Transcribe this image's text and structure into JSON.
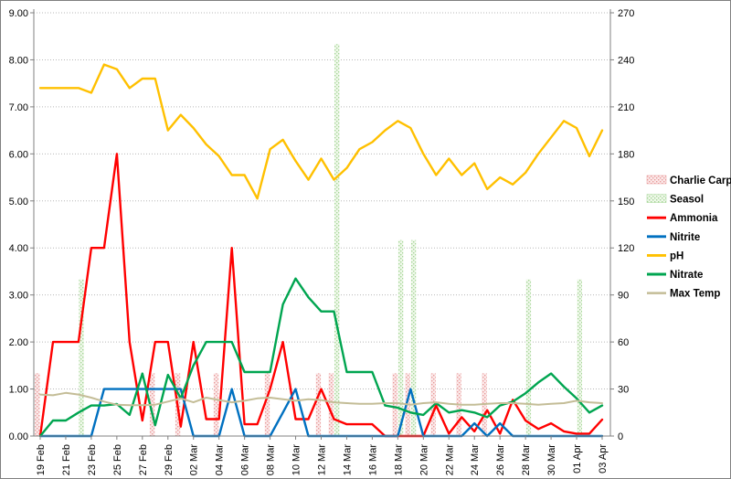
{
  "window": {
    "title": ""
  },
  "chart_data": {
    "type": "line",
    "description": "Combination line/bar chart of pond water quality: chemistry lines on left axis, temperature and dosing bars on right axis",
    "categories": [
      "19 Feb",
      "20 Feb",
      "21 Feb",
      "22 Feb",
      "23 Feb",
      "24 Feb",
      "25 Feb",
      "26 Feb",
      "27 Feb",
      "28 Feb",
      "29 Feb",
      "01 Mar",
      "02 Mar",
      "03 Mar",
      "04 Mar",
      "05 Mar",
      "06 Mar",
      "07 Mar",
      "08 Mar",
      "09 Mar",
      "10 Mar",
      "11 Mar",
      "12 Mar",
      "13 Mar",
      "14 Mar",
      "15 Mar",
      "16 Mar",
      "17 Mar",
      "18 Mar",
      "19 Mar",
      "20 Mar",
      "21 Mar",
      "22 Mar",
      "23 Mar",
      "24 Mar",
      "25 Mar",
      "26 Mar",
      "27 Mar",
      "28 Mar",
      "29 Mar",
      "30 Mar",
      "31 Mar",
      "01 Apr",
      "02 Apr",
      "03 Apr"
    ],
    "x_tick_labels": [
      "19 Feb",
      "21 Feb",
      "23 Feb",
      "25 Feb",
      "27 Feb",
      "29 Feb",
      "02 Mar",
      "04 Mar",
      "06 Mar",
      "08 Mar",
      "10 Mar",
      "12 Mar",
      "14 Mar",
      "16 Mar",
      "18 Mar",
      "20 Mar",
      "22 Mar",
      "24 Mar",
      "26 Mar",
      "28 Mar",
      "30 Mar",
      "01 Apr",
      "03 Apr"
    ],
    "left_axis": {
      "min": 0,
      "max": 9,
      "step": 1,
      "labels": [
        "9.00",
        "8.00",
        "7.00",
        "6.00",
        "5.00",
        "4.00",
        "3.00",
        "2.00",
        "1.00",
        "0.00"
      ]
    },
    "right_axis": {
      "min": 0,
      "max": 270,
      "step": 30,
      "labels": [
        "270",
        "240",
        "210",
        "180",
        "150",
        "120",
        "90",
        "60",
        "30",
        "0"
      ]
    },
    "grid": true,
    "legend_position": "right",
    "series": [
      {
        "name": "Charlie Carp",
        "type": "bar",
        "axis": "right",
        "color": "#e89a9a",
        "fill_base": "#fbe9e9",
        "values": [
          40,
          null,
          null,
          null,
          null,
          null,
          null,
          null,
          null,
          40,
          null,
          40,
          null,
          null,
          40,
          null,
          null,
          null,
          40,
          null,
          null,
          null,
          40,
          40,
          null,
          null,
          null,
          null,
          40,
          40,
          null,
          40,
          null,
          40,
          null,
          40,
          null,
          null,
          null,
          null,
          null,
          null,
          null,
          null,
          null
        ]
      },
      {
        "name": "Seasol",
        "type": "bar",
        "axis": "right",
        "color": "#a6d698",
        "fill_base": "#eff8ea",
        "values": [
          null,
          null,
          null,
          100,
          null,
          null,
          null,
          null,
          null,
          null,
          null,
          null,
          null,
          null,
          null,
          null,
          null,
          null,
          null,
          null,
          null,
          null,
          null,
          250,
          null,
          null,
          null,
          null,
          125,
          125,
          null,
          null,
          null,
          null,
          null,
          null,
          null,
          null,
          100,
          null,
          null,
          null,
          100,
          null,
          null
        ]
      },
      {
        "name": "Ammonia",
        "type": "line",
        "axis": "left",
        "color": "#ff0000",
        "width": 2.4,
        "values": [
          0,
          2,
          2,
          2,
          4,
          4,
          6,
          2,
          0.33,
          2,
          2,
          0.2,
          2,
          0.36,
          0.36,
          4,
          0.25,
          0.25,
          1,
          2,
          0.36,
          0.36,
          1,
          0.36,
          0.25,
          0.25,
          0.25,
          0,
          0,
          0,
          0,
          0.65,
          0.05,
          0.4,
          0.1,
          0.55,
          0.05,
          0.77,
          0.33,
          0.15,
          0.27,
          0.1,
          0.05,
          0.05,
          0.35
        ]
      },
      {
        "name": "Nitrite",
        "type": "line",
        "axis": "left",
        "color": "#0070c0",
        "width": 2.4,
        "values": [
          0,
          0,
          0,
          0,
          0,
          1,
          1,
          1,
          1,
          1,
          1,
          1,
          0,
          0,
          0,
          1,
          0,
          0,
          0,
          0.5,
          1,
          0,
          0,
          0,
          0,
          0,
          0,
          0,
          0,
          1,
          0,
          0,
          0,
          0,
          0.27,
          0,
          0.27,
          0,
          0,
          0,
          0,
          0,
          0,
          0,
          0
        ]
      },
      {
        "name": "pH",
        "type": "line",
        "axis": "left",
        "color": "#ffc000",
        "width": 2.4,
        "values": [
          7.4,
          7.4,
          7.4,
          7.4,
          7.3,
          7.9,
          7.8,
          7.4,
          7.6,
          7.6,
          6.5,
          6.83,
          6.55,
          6.2,
          5.95,
          5.55,
          5.55,
          5.05,
          6.1,
          6.3,
          5.85,
          5.45,
          5.9,
          5.45,
          5.7,
          6.1,
          6.25,
          6.5,
          6.7,
          6.55,
          6.0,
          5.55,
          5.9,
          5.55,
          5.8,
          5.25,
          5.5,
          5.35,
          5.6,
          6.0,
          6.35,
          6.7,
          6.55,
          5.95,
          6.5
        ]
      },
      {
        "name": "Nitrate",
        "type": "line",
        "axis": "left",
        "color": "#00a550",
        "width": 2.4,
        "values": [
          0,
          0.33,
          0.33,
          0.5,
          0.65,
          0.65,
          0.68,
          0.45,
          1.33,
          0.23,
          1.3,
          0.8,
          1.5,
          2,
          2,
          2,
          1.36,
          1.36,
          1.36,
          2.8,
          3.35,
          2.95,
          2.65,
          2.65,
          1.36,
          1.36,
          1.36,
          0.65,
          0.6,
          0.5,
          0.45,
          0.7,
          0.5,
          0.55,
          0.5,
          0.4,
          0.65,
          0.73,
          0.91,
          1.14,
          1.33,
          1.05,
          0.8,
          0.5,
          0.65
        ]
      },
      {
        "name": "Max Temp",
        "type": "line",
        "axis": "right",
        "color": "#c4bd97",
        "width": 2,
        "values": [
          26.5,
          26,
          27.5,
          26.5,
          24.5,
          22,
          20,
          19.7,
          19.7,
          20,
          22,
          24,
          21.5,
          24.5,
          23,
          21.5,
          22.5,
          24,
          24.5,
          23.5,
          22.5,
          23.5,
          23,
          21.5,
          21,
          20.5,
          20.5,
          21,
          21,
          20,
          21,
          21.5,
          20.5,
          20,
          20,
          20.5,
          21,
          21,
          20.5,
          20,
          20.5,
          21,
          22.5,
          21.5,
          21
        ]
      }
    ],
    "colors": {
      "gridline": "#b7b7b7",
      "axis_line": "#808080",
      "outer_border": "#808080",
      "background": "#ffffff"
    }
  }
}
